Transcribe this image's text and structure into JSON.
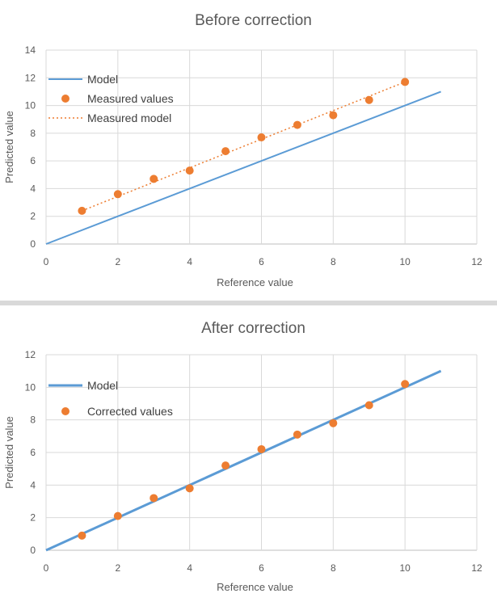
{
  "colors": {
    "model_line": "#5b9bd5",
    "points": "#ed7d31",
    "grid": "#d9d9d9",
    "text": "#595959"
  },
  "chart_data": [
    {
      "type": "scatter",
      "title": "Before correction",
      "xlabel": "Reference value",
      "ylabel": "Predicted value",
      "xlim": [
        0,
        12
      ],
      "ylim": [
        0,
        14
      ],
      "xticks": [
        0,
        2,
        4,
        6,
        8,
        10,
        12
      ],
      "yticks": [
        0,
        2,
        4,
        6,
        8,
        10,
        12,
        14
      ],
      "grid": true,
      "legend_position": "top-left",
      "series": [
        {
          "name": "Model",
          "kind": "line",
          "style": "solid",
          "x": [
            0,
            11
          ],
          "y": [
            0,
            11
          ]
        },
        {
          "name": "Measured values",
          "kind": "points",
          "x": [
            1,
            2,
            3,
            4,
            5,
            6,
            7,
            8,
            9,
            10
          ],
          "y": [
            2.4,
            3.6,
            4.7,
            5.3,
            6.7,
            7.7,
            8.6,
            9.3,
            10.4,
            11.7
          ]
        },
        {
          "name": "Measured model",
          "kind": "line",
          "style": "dotted",
          "x": [
            1,
            10
          ],
          "y": [
            2.4,
            11.7
          ]
        }
      ]
    },
    {
      "type": "scatter",
      "title": "After correction",
      "xlabel": "Reference value",
      "ylabel": "Predicted value",
      "xlim": [
        0,
        12
      ],
      "ylim": [
        0,
        12
      ],
      "xticks": [
        0,
        2,
        4,
        6,
        8,
        10,
        12
      ],
      "yticks": [
        0,
        2,
        4,
        6,
        8,
        10,
        12
      ],
      "grid": true,
      "legend_position": "top-left",
      "series": [
        {
          "name": "Model",
          "kind": "line",
          "style": "solid",
          "x": [
            0,
            11
          ],
          "y": [
            0,
            11
          ]
        },
        {
          "name": "Corrected values",
          "kind": "points",
          "x": [
            1,
            2,
            3,
            4,
            5,
            6,
            7,
            8,
            9,
            10
          ],
          "y": [
            0.9,
            2.1,
            3.2,
            3.8,
            5.2,
            6.2,
            7.1,
            7.8,
            8.9,
            10.2
          ]
        }
      ]
    }
  ]
}
